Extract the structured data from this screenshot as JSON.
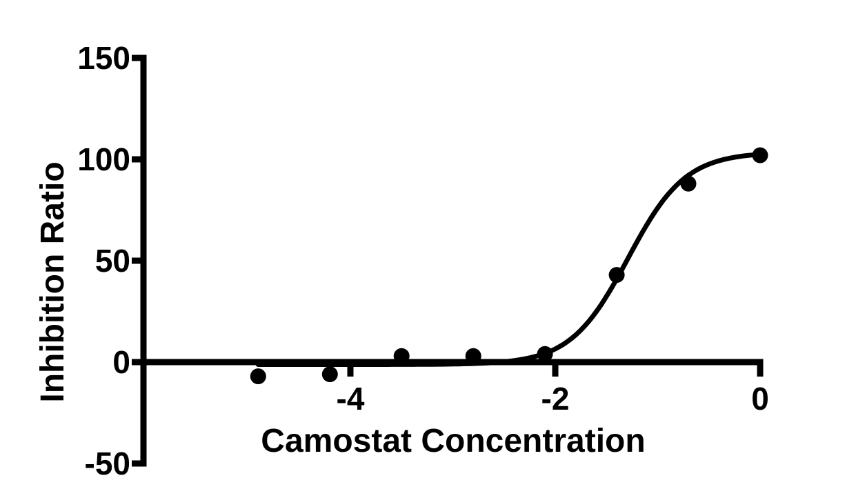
{
  "page": {
    "background": "#ffffff"
  },
  "chart_data": {
    "type": "scatter",
    "title": "",
    "xlabel": "Camostat Concentration",
    "ylabel": "Inhibition Ratio",
    "xlim": [
      -6.02,
      0
    ],
    "ylim": [
      -50,
      150
    ],
    "x_ticks": [
      -4,
      -2,
      0
    ],
    "x_tick_labels": [
      "-4",
      "-2",
      "0"
    ],
    "y_ticks": [
      150,
      100,
      50,
      0,
      -50
    ],
    "y_tick_labels": [
      "150",
      "100",
      "50",
      "0",
      "-50"
    ],
    "grid": false,
    "legend": null,
    "x_axis_at_y": 0,
    "axis_color": "#000000",
    "background": "#ffffff",
    "series": [
      {
        "name": "Inhibition Ratio",
        "marker": "filled-circle",
        "color": "#000000",
        "points": [
          {
            "x": -4.9,
            "y": -7
          },
          {
            "x": -4.2,
            "y": -6
          },
          {
            "x": -3.5,
            "y": 3
          },
          {
            "x": -2.8,
            "y": 3
          },
          {
            "x": -2.1,
            "y": 4
          },
          {
            "x": -1.4,
            "y": 43
          },
          {
            "x": -0.7,
            "y": 88
          },
          {
            "x": 0.0,
            "y": 102
          }
        ]
      }
    ],
    "fit_curve": {
      "type": "sigmoid-4PL",
      "bottom": -1.2,
      "top": 103.5,
      "log_ec50": -1.29,
      "hill_slope": 1.55,
      "x_range": [
        -4.9,
        0.0
      ],
      "color": "#000000"
    }
  }
}
